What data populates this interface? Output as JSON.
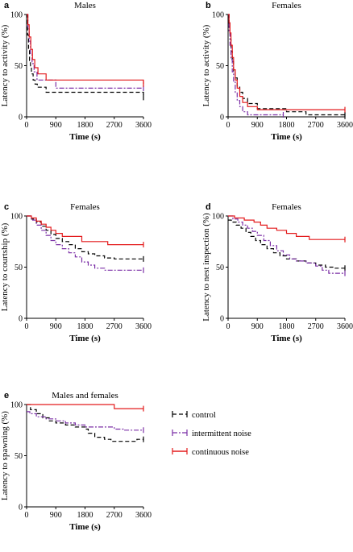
{
  "colors": {
    "control": "#000000",
    "intermittent": "#7b2fa6",
    "continuous": "#e31a1c"
  },
  "legend": {
    "control": "control",
    "intermittent": "intermittent noise",
    "continuous": "continuous noise"
  },
  "chart_data": [
    {
      "id": "a",
      "letter": "a",
      "type": "line",
      "title": "Males",
      "xlabel": "Time (s)",
      "ylabel": "Latency to activity (%)",
      "xlim": [
        0,
        3600
      ],
      "ylim": [
        0,
        100
      ],
      "xticks": [
        "0",
        "900",
        "1800",
        "2700",
        "3600"
      ],
      "yticks": [
        "0",
        "50",
        "100"
      ],
      "series": [
        {
          "key": "control",
          "x": [
            0,
            30,
            60,
            90,
            120,
            150,
            200,
            260,
            330,
            600,
            3600
          ],
          "y": [
            100,
            80,
            65,
            55,
            48,
            42,
            36,
            32,
            29,
            24,
            19
          ]
        },
        {
          "key": "intermittent",
          "x": [
            0,
            40,
            80,
            120,
            170,
            230,
            320,
            900,
            3600
          ],
          "y": [
            100,
            86,
            74,
            62,
            52,
            44,
            36,
            28,
            28
          ]
        },
        {
          "key": "continuous",
          "x": [
            0,
            40,
            80,
            130,
            180,
            250,
            350,
            600,
            3600
          ],
          "y": [
            100,
            90,
            78,
            66,
            56,
            48,
            42,
            36,
            32
          ]
        }
      ]
    },
    {
      "id": "b",
      "letter": "b",
      "type": "line",
      "title": "Females",
      "xlabel": "Time (s)",
      "ylabel": "Latency to activity (%)",
      "xlim": [
        0,
        3600
      ],
      "ylim": [
        0,
        100
      ],
      "xticks": [
        "0",
        "900",
        "1800",
        "2700",
        "3600"
      ],
      "yticks": [
        "0",
        "50",
        "100"
      ],
      "series": [
        {
          "key": "control",
          "x": [
            0,
            30,
            60,
            90,
            130,
            170,
            220,
            280,
            360,
            450,
            600,
            900,
            1800,
            2400,
            3600
          ],
          "y": [
            100,
            88,
            76,
            64,
            54,
            45,
            38,
            30,
            24,
            18,
            13,
            8,
            5,
            2,
            2
          ]
        },
        {
          "key": "intermittent",
          "x": [
            0,
            30,
            60,
            90,
            130,
            170,
            220,
            280,
            360,
            450,
            600,
            1700
          ],
          "y": [
            100,
            84,
            70,
            56,
            44,
            34,
            24,
            16,
            10,
            5,
            2,
            2
          ]
        },
        {
          "key": "continuous",
          "x": [
            0,
            30,
            60,
            90,
            130,
            170,
            220,
            280,
            360,
            450,
            600,
            900,
            3600
          ],
          "y": [
            100,
            92,
            82,
            70,
            58,
            46,
            36,
            28,
            20,
            14,
            10,
            7,
            7
          ]
        }
      ]
    },
    {
      "id": "c",
      "letter": "c",
      "type": "line",
      "title": "Females",
      "xlabel": "Time (s)",
      "ylabel": "Latency to courtship (%)",
      "xlim": [
        0,
        3600
      ],
      "ylim": [
        0,
        100
      ],
      "xticks": [
        "0",
        "900",
        "1800",
        "2700",
        "3600"
      ],
      "yticks": [
        "0",
        "50",
        "100"
      ],
      "series": [
        {
          "key": "control",
          "x": [
            0,
            150,
            300,
            450,
            600,
            750,
            900,
            1100,
            1300,
            1500,
            1700,
            1900,
            2100,
            2400,
            2700,
            3600
          ],
          "y": [
            100,
            97,
            94,
            90,
            86,
            82,
            78,
            75,
            72,
            68,
            65,
            63,
            61,
            59,
            58,
            58
          ]
        },
        {
          "key": "intermittent",
          "x": [
            0,
            150,
            300,
            450,
            600,
            750,
            900,
            1100,
            1300,
            1500,
            1700,
            1900,
            2100,
            2400,
            3600
          ],
          "y": [
            100,
            96,
            91,
            86,
            81,
            76,
            72,
            68,
            64,
            60,
            55,
            52,
            49,
            47,
            47
          ]
        },
        {
          "key": "continuous",
          "x": [
            0,
            150,
            300,
            450,
            600,
            750,
            900,
            1100,
            1300,
            1700,
            2500,
            3600
          ],
          "y": [
            100,
            98,
            95,
            92,
            89,
            86,
            83,
            80,
            80,
            75,
            72,
            72
          ]
        }
      ]
    },
    {
      "id": "d",
      "letter": "d",
      "type": "line",
      "title": "Females",
      "xlabel": "Time (s)",
      "ylabel": "Latency to nest inspection (%)",
      "xlim": [
        0,
        3600
      ],
      "ylim": [
        0,
        100
      ],
      "xticks": [
        "0",
        "900",
        "1800",
        "2700",
        "3600"
      ],
      "yticks": [
        "0",
        "50",
        "100"
      ],
      "series": [
        {
          "key": "control",
          "x": [
            0,
            100,
            250,
            400,
            550,
            700,
            850,
            1000,
            1200,
            1400,
            1600,
            1800,
            2100,
            2400,
            2700,
            3000,
            3300,
            3600
          ],
          "y": [
            96,
            94,
            91,
            88,
            84,
            80,
            76,
            72,
            68,
            64,
            61,
            58,
            56,
            54,
            52,
            50,
            49,
            49
          ]
        },
        {
          "key": "intermittent",
          "x": [
            0,
            150,
            300,
            450,
            600,
            750,
            900,
            1100,
            1300,
            1500,
            1700,
            1900,
            2100,
            2400,
            2700,
            2900,
            3100,
            3600
          ],
          "y": [
            100,
            97,
            94,
            91,
            88,
            85,
            81,
            76,
            71,
            66,
            62,
            58,
            56,
            54,
            51,
            47,
            44,
            44
          ]
        },
        {
          "key": "continuous",
          "x": [
            0,
            200,
            500,
            800,
            1000,
            1200,
            1500,
            1800,
            2100,
            2500,
            3600
          ],
          "y": [
            100,
            98,
            96,
            94,
            91,
            88,
            86,
            83,
            80,
            77,
            77
          ]
        }
      ]
    },
    {
      "id": "e",
      "letter": "e",
      "type": "line",
      "title": "Males and females",
      "xlabel": "Time (s)",
      "ylabel": "Latency to spawning (%)",
      "xlim": [
        0,
        3600
      ],
      "ylim": [
        0,
        100
      ],
      "xticks": [
        "0",
        "900",
        "1800",
        "2700",
        "3600"
      ],
      "yticks": [
        "0",
        "50",
        "100"
      ],
      "series": [
        {
          "key": "control",
          "x": [
            0,
            120,
            300,
            500,
            700,
            900,
            1200,
            1500,
            1800,
            1900,
            2100,
            2400,
            2600,
            3400,
            3600
          ],
          "y": [
            100,
            95,
            91,
            87,
            84,
            82,
            80,
            78,
            76,
            72,
            68,
            66,
            64,
            66,
            66
          ]
        },
        {
          "key": "intermittent",
          "x": [
            0,
            100,
            300,
            600,
            900,
            1200,
            1500,
            1800,
            2400,
            2700,
            3000,
            3600
          ],
          "y": [
            93,
            91,
            88,
            86,
            84,
            82,
            80,
            78,
            78,
            76,
            75,
            75
          ]
        },
        {
          "key": "continuous",
          "x": [
            0,
            2500,
            2700,
            3600
          ],
          "y": [
            100,
            100,
            96,
            96
          ]
        }
      ]
    }
  ]
}
